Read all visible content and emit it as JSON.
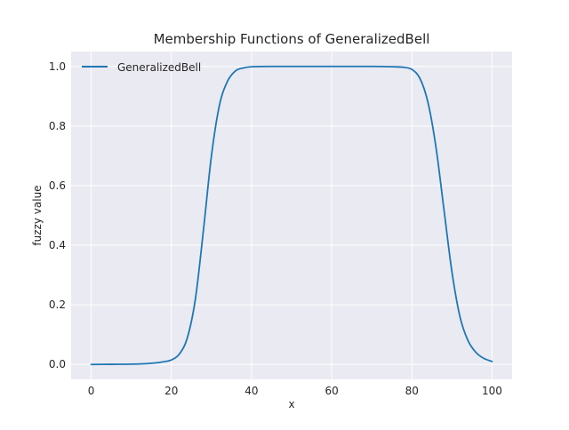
{
  "chart_data": {
    "type": "line",
    "title": "Membership Functions of GeneralizedBell",
    "xlabel": "x",
    "ylabel": "fuzzy value",
    "xlim": [
      -5,
      105
    ],
    "ylim": [
      -0.05,
      1.05
    ],
    "xticks": [
      0,
      20,
      40,
      60,
      80,
      100
    ],
    "yticks": [
      0.0,
      0.2,
      0.4,
      0.6,
      0.8,
      1.0
    ],
    "xtick_labels": [
      "0",
      "20",
      "40",
      "60",
      "80",
      "100"
    ],
    "ytick_labels": [
      "0.0",
      "0.2",
      "0.4",
      "0.6",
      "0.8",
      "1.0"
    ],
    "grid": true,
    "legend_position": "upper-left",
    "style": {
      "axes_background": "#eaeaf2",
      "grid_color": "#ffffff",
      "line_color": "#1f77b4",
      "text_color": "#262626"
    },
    "series": [
      {
        "name": "GeneralizedBell",
        "x": [
          0,
          5,
          10,
          15,
          18,
          20,
          22,
          24,
          26,
          28,
          30,
          32,
          34,
          36,
          38,
          40,
          45,
          50,
          55,
          60,
          65,
          70,
          75,
          78,
          80,
          82,
          84,
          86,
          88,
          90,
          92,
          94,
          96,
          98,
          100
        ],
        "y": [
          0.0,
          0.0005,
          0.001,
          0.004,
          0.009,
          0.015,
          0.035,
          0.09,
          0.22,
          0.45,
          0.7,
          0.87,
          0.95,
          0.985,
          0.995,
          0.999,
          1.0,
          1.0,
          1.0,
          1.0,
          1.0,
          1.0,
          0.999,
          0.997,
          0.99,
          0.96,
          0.88,
          0.73,
          0.52,
          0.31,
          0.16,
          0.08,
          0.04,
          0.02,
          0.01
        ]
      }
    ]
  }
}
